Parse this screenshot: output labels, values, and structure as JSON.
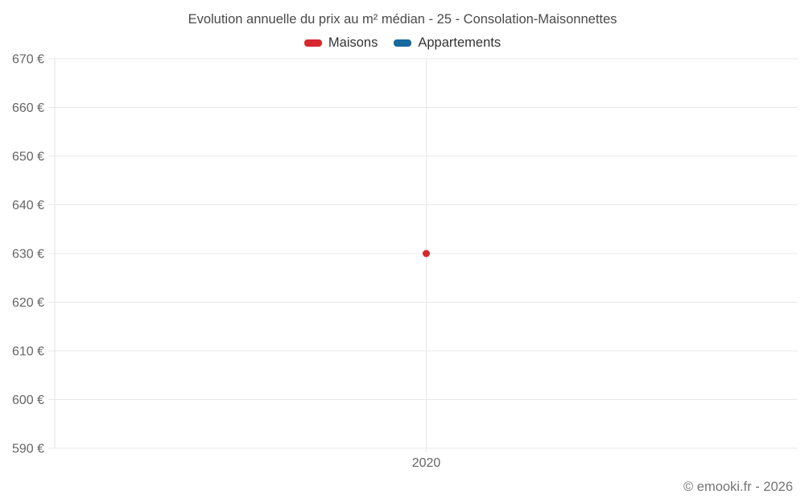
{
  "chart_data": {
    "type": "line",
    "title": "Evolution annuelle du prix au m² médian - 25 - Consolation-Maisonnettes",
    "categories": [
      "2020"
    ],
    "series": [
      {
        "name": "Maisons",
        "color": "#d7282f",
        "values": [
          630
        ]
      },
      {
        "name": "Appartements",
        "color": "#17699e",
        "values": [
          null
        ]
      }
    ],
    "xlabel": "",
    "ylabel": "",
    "ylim": [
      590,
      670
    ],
    "ytick_step": 10,
    "ytick_suffix": " €",
    "grid": true,
    "legend_position": "top"
  },
  "footer": {
    "credit": "© emooki.fr - 2026"
  }
}
